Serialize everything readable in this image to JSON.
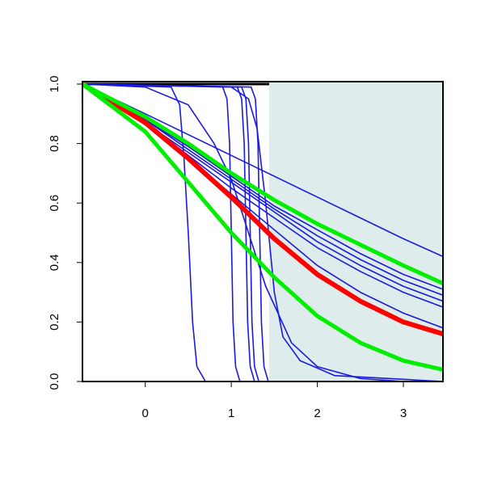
{
  "chart_data": {
    "type": "line",
    "xlim": [
      -0.73,
      3.46
    ],
    "ylim": [
      0,
      1
    ],
    "xticks": [
      0,
      1,
      2,
      3
    ],
    "yticks": [
      {
        "value": 0,
        "label": "0.0"
      },
      {
        "value": 0.2,
        "label": "0.2"
      },
      {
        "value": 0.4,
        "label": "0.4"
      },
      {
        "value": 0.6,
        "label": "0.6"
      },
      {
        "value": 0.8,
        "label": "0.8"
      },
      {
        "value": 1,
        "label": "1.0"
      }
    ],
    "shade": {
      "xlim": [
        1.44,
        3.46
      ],
      "color": "#dfecec"
    },
    "series": [
      {
        "color": "#000000",
        "width": 3,
        "x": [
          -0.73,
          1.44
        ],
        "values": [
          1,
          1
        ]
      },
      {
        "color": "#1a1ae0",
        "width": 1.6,
        "x": [
          -0.73,
          0,
          0.5,
          1,
          1.5,
          2,
          2.5,
          3,
          3.46
        ],
        "values": [
          1,
          0.9,
          0.83,
          0.76,
          0.69,
          0.62,
          0.55,
          0.48,
          0.42
        ]
      },
      {
        "color": "#1a1ae0",
        "width": 1.6,
        "x": [
          -0.73,
          0,
          0.5,
          1,
          1.5,
          2,
          2.5,
          3,
          3.46
        ],
        "values": [
          1,
          0.88,
          0.79,
          0.69,
          0.59,
          0.51,
          0.43,
          0.36,
          0.31
        ]
      },
      {
        "color": "#1a1ae0",
        "width": 1.6,
        "x": [
          -0.73,
          0,
          0.5,
          1,
          1.5,
          2,
          2.5,
          3,
          3.46
        ],
        "values": [
          1,
          0.88,
          0.78,
          0.68,
          0.58,
          0.49,
          0.41,
          0.34,
          0.29
        ]
      },
      {
        "color": "#1a1ae0",
        "width": 1.6,
        "x": [
          -0.73,
          0,
          0.5,
          1,
          1.5,
          2,
          2.5,
          3,
          3.46
        ],
        "values": [
          1,
          0.87,
          0.77,
          0.67,
          0.57,
          0.47,
          0.39,
          0.32,
          0.27
        ]
      },
      {
        "color": "#1a1ae0",
        "width": 1.6,
        "x": [
          -0.73,
          0,
          0.5,
          1,
          1.5,
          2,
          2.5,
          3,
          3.46
        ],
        "values": [
          1,
          0.87,
          0.76,
          0.65,
          0.55,
          0.45,
          0.37,
          0.3,
          0.25
        ]
      },
      {
        "color": "#1a1ae0",
        "width": 1.6,
        "x": [
          -0.73,
          0,
          0.5,
          1,
          1.5,
          2,
          2.5,
          3,
          3.46
        ],
        "values": [
          1,
          0.87,
          0.75,
          0.63,
          0.51,
          0.39,
          0.3,
          0.23,
          0.18
        ]
      },
      {
        "color": "#1a1ae0",
        "width": 1.6,
        "x": [
          -0.73,
          0.3,
          0.4,
          0.45,
          0.5,
          0.55,
          0.6,
          0.7,
          3.46
        ],
        "values": [
          1,
          0.99,
          0.93,
          0.75,
          0.5,
          0.2,
          0.05,
          0,
          0
        ]
      },
      {
        "color": "#1a1ae0",
        "width": 1.6,
        "x": [
          -0.73,
          0.9,
          0.95,
          0.98,
          1,
          1.02,
          1.05,
          1.1,
          3.46
        ],
        "values": [
          1,
          0.99,
          0.95,
          0.8,
          0.5,
          0.2,
          0.05,
          0,
          0
        ]
      },
      {
        "color": "#1a1ae0",
        "width": 1.6,
        "x": [
          -0.73,
          1.07,
          1.12,
          1.15,
          1.17,
          1.19,
          1.22,
          1.27,
          3.46
        ],
        "values": [
          1,
          0.99,
          0.95,
          0.8,
          0.5,
          0.2,
          0.05,
          0,
          0
        ]
      },
      {
        "color": "#1a1ae0",
        "width": 1.6,
        "x": [
          -0.73,
          1.12,
          1.17,
          1.2,
          1.22,
          1.24,
          1.27,
          1.32,
          3.46
        ],
        "values": [
          1,
          0.99,
          0.95,
          0.8,
          0.5,
          0.2,
          0.05,
          0,
          0
        ]
      },
      {
        "color": "#1a1ae0",
        "width": 1.6,
        "x": [
          -0.73,
          1.23,
          1.28,
          1.31,
          1.33,
          1.35,
          1.38,
          1.43,
          3.46
        ],
        "values": [
          1,
          0.99,
          0.95,
          0.8,
          0.5,
          0.2,
          0.05,
          0,
          0
        ]
      },
      {
        "color": "#1a1ae0",
        "width": 1.6,
        "x": [
          -0.73,
          0,
          0.5,
          0.8,
          1,
          1.2,
          1.4,
          1.7,
          2,
          2.5,
          3,
          3.46
        ],
        "values": [
          1,
          0.99,
          0.93,
          0.8,
          0.68,
          0.5,
          0.32,
          0.13,
          0.05,
          0.01,
          0,
          0
        ]
      },
      {
        "color": "#1a1ae0",
        "width": 1.6,
        "x": [
          -0.73,
          1,
          1.2,
          1.3,
          1.4,
          1.5,
          1.6,
          1.8,
          2.2,
          3.46
        ],
        "values": [
          1,
          0.99,
          0.95,
          0.85,
          0.6,
          0.3,
          0.15,
          0.07,
          0.02,
          0
        ]
      },
      {
        "color": "#ff0000",
        "width": 6,
        "x": [
          -0.73,
          0,
          0.5,
          1,
          1.5,
          2,
          2.5,
          3,
          3.46
        ],
        "values": [
          1,
          0.87,
          0.75,
          0.62,
          0.48,
          0.36,
          0.27,
          0.2,
          0.16
        ]
      },
      {
        "color": "#00ee00",
        "width": 5,
        "x": [
          -0.73,
          0,
          0.5,
          1,
          1.5,
          2,
          2.5,
          3,
          3.46
        ],
        "values": [
          1,
          0.89,
          0.8,
          0.7,
          0.61,
          0.53,
          0.46,
          0.39,
          0.33
        ]
      },
      {
        "color": "#00ee00",
        "width": 5,
        "x": [
          -0.73,
          0,
          0.5,
          1,
          1.5,
          2,
          2.5,
          3,
          3.46
        ],
        "values": [
          1,
          0.84,
          0.67,
          0.5,
          0.35,
          0.22,
          0.13,
          0.07,
          0.04
        ]
      }
    ]
  }
}
